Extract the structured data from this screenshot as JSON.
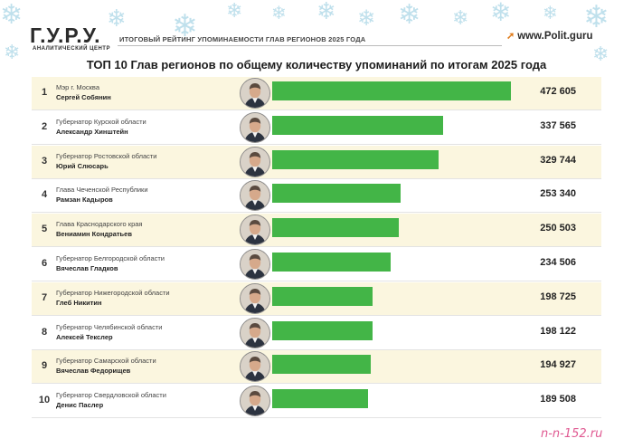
{
  "header": {
    "logo": "Г.У.Р.У.",
    "logo_sub": "АНАЛИТИЧЕСКИЙ ЦЕНТР",
    "subtitle": "ИТОГОВЫЙ РЕЙТИНГ УПОМИНАЕМОСТИ ГЛАВ РЕГИОНОВ 2025 ГОДА",
    "site": "www.Polit.guru"
  },
  "watermark": "n-n-152.ru",
  "chart_data": {
    "type": "bar",
    "title": "ТОП 10 Глав регионов по общему количеству упоминаний по итогам 2025 года",
    "orientation": "horizontal",
    "xlim": [
      0,
      472605
    ],
    "rows": [
      {
        "rank": "1",
        "position": "Мэр г. Москва",
        "name": "Сергей Собянин",
        "value": 472605,
        "label": "472 605"
      },
      {
        "rank": "2",
        "position": "Губернатор Курской области",
        "name": "Александр Хинштейн",
        "value": 337565,
        "label": "337 565"
      },
      {
        "rank": "3",
        "position": "Губернатор Ростовской области",
        "name": "Юрий Слюсарь",
        "value": 329744,
        "label": "329 744"
      },
      {
        "rank": "4",
        "position": "Глава Чеченской Республики",
        "name": "Рамзан Кадыров",
        "value": 253340,
        "label": "253 340"
      },
      {
        "rank": "5",
        "position": "Глава Краснодарского края",
        "name": "Вениамин Кондратьев",
        "value": 250503,
        "label": "250 503"
      },
      {
        "rank": "6",
        "position": "Губернатор Белгородской области",
        "name": "Вячеслав Гладков",
        "value": 234506,
        "label": "234 506"
      },
      {
        "rank": "7",
        "position": "Губернатор Нижегородской области",
        "name": "Глеб Никитин",
        "value": 198725,
        "label": "198 725"
      },
      {
        "rank": "8",
        "position": "Губернатор Челябинской области",
        "name": "Алексей Текслер",
        "value": 198122,
        "label": "198 122"
      },
      {
        "rank": "9",
        "position": "Губернатор Самарской области",
        "name": "Вячеслав Федорищев",
        "value": 194927,
        "label": "194 927"
      },
      {
        "rank": "10",
        "position": "Губернатор Свердловской области",
        "name": "Денис Паслер",
        "value": 189508,
        "label": "189 508"
      }
    ],
    "bar_color": "#43b547",
    "stripe_color": "#fbf6df"
  }
}
